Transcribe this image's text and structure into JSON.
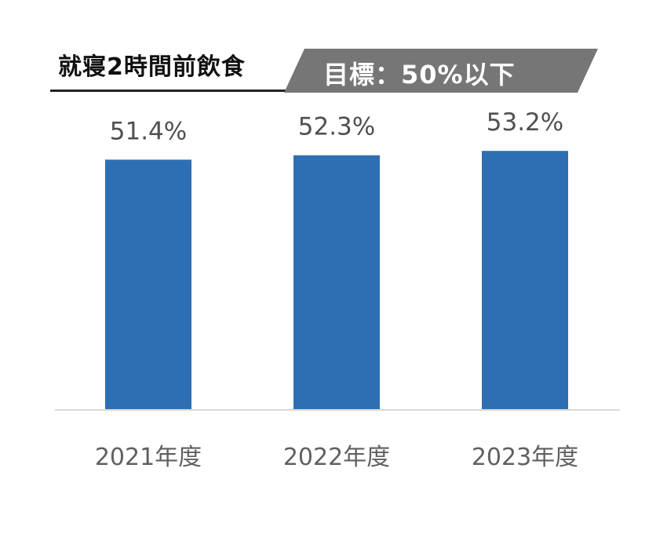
{
  "header": {
    "title": "就寝2時間前飲食",
    "target": "目標：50%以下"
  },
  "colors": {
    "bar": "#2e6fb3",
    "banner": "#767676",
    "baseline": "#d9d9d9"
  },
  "chart_data": {
    "type": "bar",
    "title": "就寝2時間前飲食",
    "categories": [
      "2021年度",
      "2022年度",
      "2023年度"
    ],
    "values": [
      51.4,
      52.3,
      53.2
    ],
    "value_labels": [
      "51.4%",
      "52.3%",
      "53.2%"
    ],
    "xlabel": "",
    "ylabel": "",
    "ylim": [
      0,
      60
    ],
    "grid": false,
    "legend": "none"
  }
}
